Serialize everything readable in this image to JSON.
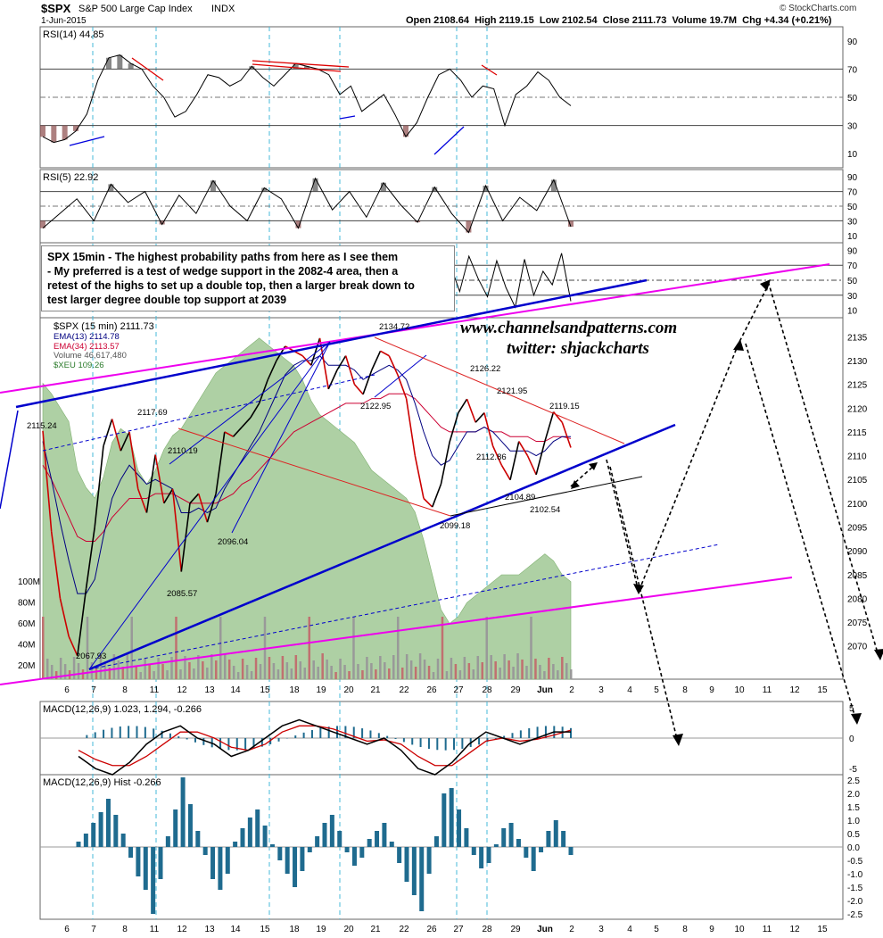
{
  "header": {
    "title": "$SPX",
    "name": "S&P 500 Large Cap Index",
    "exchange": "INDX",
    "date": "1-Jun-2015",
    "open": "Open 2108.64",
    "high": "High 2119.15",
    "low": "Low 2102.54",
    "close": "Close 2111.73",
    "volume": "Volume 19.7M",
    "change": "Chg +4.34 (+0.21%)",
    "brand": "© StockCharts.com"
  },
  "note": {
    "lines": [
      "SPX 15min - The highest probability paths from here as I see them",
      "- My preferred is a test of wedge support in the 2082-4 area, then a",
      "retest of the highs to set up a double top, then a larger break down to",
      "test larger degree double top support at 2039"
    ]
  },
  "watermark": {
    "site": "www.channelsandpatterns.com",
    "twitter": "twitter: shjackcharts"
  },
  "colors": {
    "price_up": "#000000",
    "price_down": "#cc0000",
    "ema13": "#000080",
    "ema34": "#cc0033",
    "xeu_fill": "#aed0a4",
    "trend_blue": "#0000cc",
    "trend_magenta": "#ee00ee",
    "trend_red": "#dd2222",
    "macd_hist": "#1f6b8f",
    "vertical_marker": "#44b8d8"
  },
  "chart_data": {
    "type": "line",
    "title": "$SPX S&P 500 Large Cap Index INDX",
    "x_ticks": [
      "6",
      "7",
      "8",
      "11",
      "12",
      "13",
      "14",
      "15",
      "18",
      "19",
      "20",
      "21",
      "22",
      "26",
      "27",
      "28",
      "29",
      "Jun",
      "2",
      "3",
      "4",
      "5",
      "8",
      "9",
      "10",
      "11",
      "12",
      "15"
    ],
    "rsi14": {
      "label": "RSI(14) 44.85",
      "ylim": [
        0,
        100
      ],
      "yticks": [
        "90",
        "70",
        "50",
        "30",
        "10"
      ],
      "levels": [
        70,
        50,
        30
      ],
      "values": [
        22,
        18,
        20,
        26,
        38,
        62,
        78,
        80,
        74,
        70,
        58,
        50,
        36,
        40,
        52,
        66,
        64,
        58,
        62,
        72,
        64,
        58,
        66,
        74,
        72,
        70,
        66,
        52,
        58,
        40,
        46,
        52,
        38,
        22,
        32,
        50,
        66,
        70,
        62,
        50,
        58,
        56,
        30,
        52,
        58,
        68,
        62,
        50,
        44
      ]
    },
    "rsi5": {
      "label": "RSI(5) 22.92",
      "ylim": [
        0,
        100
      ],
      "yticks": [
        "90",
        "70",
        "50",
        "30",
        "10"
      ],
      "levels": [
        70,
        50,
        30
      ],
      "values": [
        20,
        40,
        60,
        30,
        80,
        55,
        70,
        25,
        65,
        40,
        85,
        50,
        30,
        75,
        60,
        20,
        88,
        45,
        70,
        35,
        82,
        52,
        28,
        76,
        40,
        14,
        78,
        30,
        62,
        44,
        86,
        22
      ]
    },
    "rsi_overlay": {
      "yticks": [
        "90",
        "70",
        "50",
        "30",
        "10"
      ]
    },
    "price": {
      "label": "$SPX (15 min) 2111.73",
      "ema13_label": "EMA(13) 2114.78",
      "ema34_label": "EMA(34) 2113.57",
      "volume_label": "Volume 46,617,480",
      "xeu_label": "$XEU 109.26",
      "ylim": [
        2063,
        2139
      ],
      "yticks": [
        "2135",
        "2130",
        "2125",
        "2120",
        "2115",
        "2110",
        "2105",
        "2100",
        "2095",
        "2090",
        "2085",
        "2080",
        "2075",
        "2070"
      ],
      "volume_ticks": [
        "100M",
        "80M",
        "60M",
        "40M",
        "20M"
      ],
      "series": [
        2115.2,
        2094,
        2080,
        2072,
        2067.9,
        2082,
        2095,
        2112,
        2117.7,
        2111,
        2115,
        2103,
        2098,
        2110.2,
        2100,
        2103,
        2085.6,
        2100,
        2102,
        2096,
        2102,
        2115,
        2114,
        2116,
        2118,
        2121,
        2126,
        2130,
        2133,
        2132,
        2131,
        2129,
        2134.7,
        2124,
        2128,
        2131,
        2125,
        2122.9,
        2128,
        2132,
        2131,
        2127,
        2122,
        2110,
        2101,
        2099.2,
        2104,
        2112.9,
        2119,
        2121.9,
        2117,
        2119,
        2112,
        2108,
        2104.9,
        2113,
        2110,
        2106,
        2113,
        2119.2,
        2117,
        2111.7
      ],
      "ema13": [
        2113,
        2105,
        2096,
        2088,
        2081,
        2081,
        2084,
        2093,
        2101,
        2105,
        2108,
        2106,
        2104,
        2105,
        2104,
        2103,
        2098,
        2098,
        2099,
        2098,
        2099,
        2103,
        2106,
        2109,
        2112,
        2115,
        2119,
        2123,
        2127,
        2129,
        2130,
        2130,
        2131,
        2129,
        2129,
        2129,
        2128,
        2126,
        2127,
        2128,
        2129,
        2128,
        2126,
        2121,
        2115,
        2110,
        2108,
        2109,
        2112,
        2115,
        2115,
        2116,
        2115,
        2113,
        2111,
        2111,
        2111,
        2110,
        2111,
        2113,
        2114,
        2114
      ],
      "ema34": [
        2108,
        2105,
        2101,
        2097,
        2093,
        2092,
        2092,
        2094,
        2097,
        2099,
        2101,
        2101,
        2101,
        2102,
        2102,
        2102,
        2101,
        2100,
        2100,
        2100,
        2100,
        2101,
        2102,
        2104,
        2105,
        2107,
        2109,
        2111,
        2113,
        2115,
        2116,
        2117,
        2118,
        2119,
        2120,
        2121,
        2121,
        2121,
        2122,
        2122,
        2123,
        2123,
        2123,
        2122,
        2120,
        2118,
        2116,
        2115,
        2115,
        2115,
        2115,
        2116,
        2115,
        2115,
        2114,
        2114,
        2114,
        2113,
        2113,
        2114,
        2114,
        2113.6
      ],
      "xeu": [
        85,
        82,
        78,
        74,
        60,
        55,
        52,
        58,
        68,
        72,
        70,
        60,
        56,
        60,
        66,
        70,
        72,
        76,
        80,
        84,
        88,
        90,
        92,
        94,
        96,
        98,
        96,
        94,
        92,
        90,
        86,
        80,
        76,
        74,
        72,
        70,
        68,
        64,
        60,
        58,
        56,
        54,
        52,
        48,
        40,
        30,
        20,
        16,
        18,
        22,
        24,
        26,
        28,
        30,
        30,
        30,
        32,
        34,
        36,
        34,
        30,
        28
      ],
      "annotations": [
        "2067.93",
        "2117.69",
        "2110.19",
        "2085.57",
        "2096.04",
        "2115.24",
        "2134.72",
        "2122.95",
        "2126.22",
        "2121.95",
        "2119.15",
        "2112.86",
        "2104.89",
        "2102.54",
        "2099.18"
      ]
    },
    "macd": {
      "label": "MACD(12,26,9) 1.023, 1.294, -0.266",
      "yticks": [
        "5",
        "0",
        "-5"
      ],
      "macd": [
        -3,
        -5,
        -6,
        -4,
        -1,
        1,
        2,
        0,
        -1,
        -3,
        -2,
        0,
        2,
        3,
        2,
        1,
        0,
        -1,
        0,
        -2,
        -5,
        -6,
        -4,
        -1,
        1,
        0,
        -1,
        0,
        1,
        1
      ],
      "signal": [
        -2,
        -3.5,
        -4.5,
        -4.5,
        -3,
        -1,
        1,
        1,
        0,
        -1.5,
        -2,
        -1,
        1,
        2,
        2,
        1.5,
        0.5,
        -0.5,
        -0.3,
        -1,
        -3,
        -4.5,
        -4.5,
        -2.5,
        -0.5,
        0,
        -0.5,
        -0.2,
        0.5,
        1.3
      ]
    },
    "macd_hist": {
      "label": "MACD(12,26,9) Hist -0.266",
      "ylim": [
        -2.7,
        2.7
      ],
      "yticks": [
        "2.5",
        "2.0",
        "1.5",
        "1.0",
        "0.5",
        "0.0",
        "-0.5",
        "-1.0",
        "-1.5",
        "-2.0",
        "-2.5"
      ],
      "values": [
        0.2,
        0.5,
        0.9,
        1.3,
        1.8,
        1.2,
        0.5,
        -0.4,
        -1.1,
        -1.6,
        -2.5,
        -1.2,
        0.4,
        1.4,
        2.6,
        1.6,
        0.6,
        -0.3,
        -1.2,
        -1.6,
        -1.0,
        0.2,
        0.7,
        1.1,
        1.4,
        0.8,
        0.1,
        -0.5,
        -1.0,
        -1.5,
        -0.9,
        -0.2,
        0.4,
        0.9,
        1.2,
        0.6,
        -0.2,
        -0.7,
        -0.4,
        0.3,
        0.6,
        0.9,
        0.2,
        -0.6,
        -1.3,
        -1.8,
        -2.4,
        -1.0,
        0.4,
        2.0,
        2.2,
        1.4,
        0.7,
        -0.3,
        -0.8,
        -0.6,
        0.1,
        0.7,
        0.9,
        0.3,
        -0.4,
        -0.9,
        -0.2,
        0.6,
        1.0,
        0.6,
        -0.3
      ]
    }
  }
}
